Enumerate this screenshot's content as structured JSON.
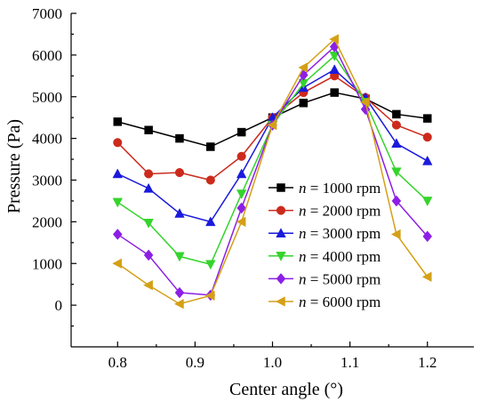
{
  "chart_data": {
    "type": "line",
    "title": "",
    "xlabel": "Center angle (°)",
    "ylabel": "Pressure (Pa)",
    "xlim": [
      0.74,
      1.26
    ],
    "ylim": [
      -1000,
      7000
    ],
    "xticks": [
      0.8,
      0.9,
      1.0,
      1.1,
      1.2
    ],
    "xtick_labels": [
      "0.8",
      "0.9",
      "1.0",
      "1.1",
      "1.2"
    ],
    "yticks": [
      0,
      1000,
      2000,
      3000,
      4000,
      5000,
      6000,
      7000
    ],
    "ytick_labels": [
      "0",
      "1000",
      "2000",
      "3000",
      "4000",
      "5000",
      "6000",
      "7000"
    ],
    "grid": false,
    "legend_position": "center-right",
    "x": [
      0.8,
      0.84,
      0.88,
      0.92,
      0.96,
      1.0,
      1.04,
      1.08,
      1.12,
      1.16,
      1.2
    ],
    "series": [
      {
        "name": "n = 1000 rpm",
        "legend_italic": "n",
        "legend_rest": " = 1000 rpm",
        "color": "#000000",
        "marker": "square",
        "values": [
          4400,
          4200,
          4000,
          3800,
          4150,
          4500,
          4850,
          5100,
          4950,
          4580,
          4480
        ]
      },
      {
        "name": "n = 2000 rpm",
        "legend_italic": "n",
        "legend_rest": " = 2000 rpm",
        "color": "#cc2a1c",
        "marker": "circle",
        "values": [
          3900,
          3150,
          3180,
          3000,
          3570,
          4500,
          5100,
          5500,
          4980,
          4320,
          4030
        ]
      },
      {
        "name": "n = 3000 rpm",
        "legend_italic": "n",
        "legend_rest": " = 3000 rpm",
        "color": "#1a1adb",
        "marker": "triangle-up",
        "values": [
          3150,
          2800,
          2200,
          2000,
          3150,
          4500,
          5220,
          5650,
          4980,
          3880,
          3460
        ]
      },
      {
        "name": "n = 4000 rpm",
        "legend_italic": "n",
        "legend_rest": " = 4000 rpm",
        "color": "#35d42c",
        "marker": "triangle-down",
        "values": [
          2470,
          1970,
          1170,
          980,
          2670,
          4320,
          5320,
          5980,
          4870,
          3200,
          2500
        ]
      },
      {
        "name": "n = 5000 rpm",
        "legend_italic": "n",
        "legend_rest": " = 5000 rpm",
        "color": "#8c1ee6",
        "marker": "diamond",
        "values": [
          1700,
          1200,
          300,
          240,
          2330,
          4320,
          5520,
          6200,
          4700,
          2500,
          1650
        ]
      },
      {
        "name": "n = 6000 rpm",
        "legend_italic": "n",
        "legend_rest": " = 6000 rpm",
        "color": "#d4a017",
        "marker": "triangle-left",
        "values": [
          1000,
          480,
          30,
          230,
          2000,
          4320,
          5700,
          6380,
          4870,
          1700,
          680
        ]
      }
    ]
  }
}
